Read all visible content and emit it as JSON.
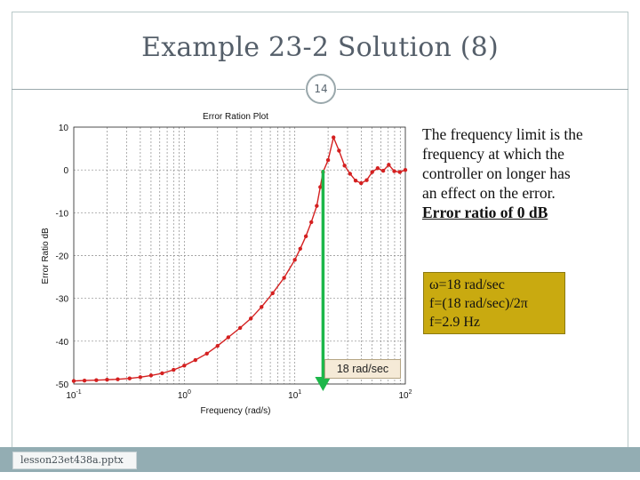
{
  "slide": {
    "title": "Example 23-2 Solution (8)",
    "number": "14",
    "footer_filename": "lesson23et438a.pptx"
  },
  "notes": {
    "line1": "The frequency limit is the",
    "line2": "frequency at which the",
    "line3": "controller on longer has",
    "line4": "an effect on the error.",
    "line5": "Error ratio of 0 dB"
  },
  "highlight_box": {
    "line1": "ω=18 rad/sec",
    "line2": "f=(18 rad/sec)/2π",
    "line3": "f=2.9 Hz"
  },
  "annotation_label": "18 rad/sec",
  "colors": {
    "curve": "#d42020",
    "arrow": "#1db74a",
    "highlight_box": "#c9aa10",
    "footer_bar": "#93adb3"
  },
  "chart_data": {
    "type": "line",
    "title": "Error Ration Plot",
    "xlabel": "Frequency (rad/s)",
    "ylabel": "Error Ratio dB",
    "x_scale": "log",
    "xlim": [
      0.1,
      100
    ],
    "ylim": [
      -50,
      10
    ],
    "grid": true,
    "x_ticks": [
      {
        "value": 0.1,
        "base": "10",
        "exp": "-1"
      },
      {
        "value": 1,
        "base": "10",
        "exp": "0"
      },
      {
        "value": 10,
        "base": "10",
        "exp": "1"
      },
      {
        "value": 100,
        "base": "10",
        "exp": "2"
      }
    ],
    "y_ticks": [
      10,
      0,
      -10,
      -20,
      -30,
      -40,
      -50
    ],
    "series": [
      {
        "x": [
          0.1,
          0.125,
          0.16,
          0.2,
          0.25,
          0.32,
          0.4,
          0.5,
          0.63,
          0.8,
          1.0,
          1.26,
          1.6,
          2.0,
          2.5,
          3.2,
          4.0,
          5.0,
          6.3,
          8.0,
          10.0,
          11.2,
          12.6,
          14.1,
          15.8,
          17.0,
          18.0,
          20.0,
          22.4,
          25.1,
          28.2,
          31.6,
          35.5,
          39.8,
          44.7,
          50.1,
          56.2,
          63.1,
          70.8,
          79.4,
          89.1,
          100
        ],
        "y": [
          -49.3,
          -49.2,
          -49.1,
          -49.0,
          -48.9,
          -48.7,
          -48.4,
          -48.0,
          -47.5,
          -46.7,
          -45.7,
          -44.4,
          -42.9,
          -41.1,
          -39.1,
          -36.9,
          -34.7,
          -32.0,
          -28.8,
          -25.2,
          -21.0,
          -18.4,
          -15.5,
          -12.2,
          -8.4,
          -4.0,
          -0.5,
          2.3,
          7.6,
          4.5,
          1.0,
          -0.9,
          -2.5,
          -3.1,
          -2.4,
          -0.5,
          0.4,
          -0.2,
          1.2,
          -0.3,
          -0.5,
          0.0
        ]
      }
    ],
    "annotations": [
      {
        "text": "18 rad/sec",
        "x": 18
      }
    ]
  }
}
